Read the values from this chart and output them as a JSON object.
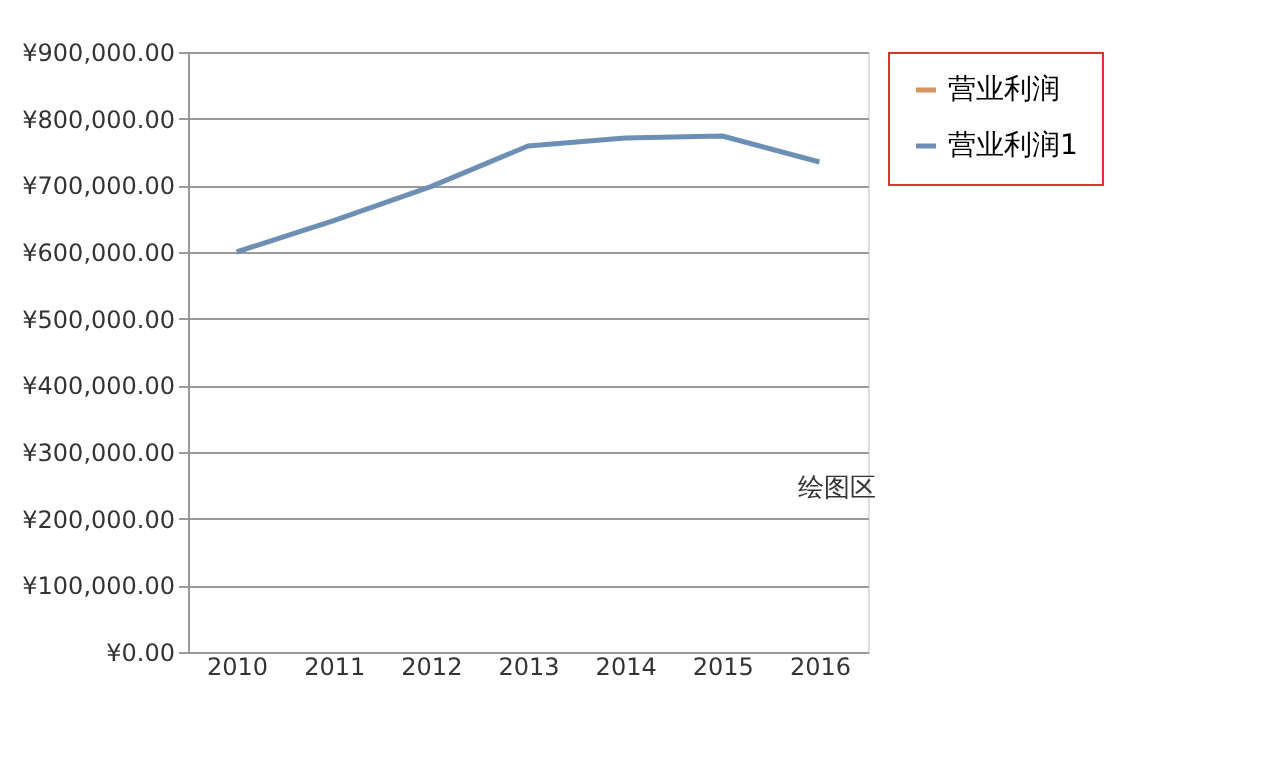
{
  "chart_data": {
    "type": "line",
    "categories": [
      "2010",
      "2011",
      "2012",
      "2013",
      "2014",
      "2015",
      "2016"
    ],
    "series": [
      {
        "name": "营业利润",
        "color": "#d9955b",
        "values": [
          null,
          null,
          null,
          null,
          null,
          null,
          null
        ]
      },
      {
        "name": "营业利润1",
        "color": "#6b8fb5",
        "values": [
          600000,
          647000,
          698000,
          759000,
          771000,
          774000,
          735000
        ]
      }
    ],
    "ylim": [
      0,
      900000
    ],
    "yticks": [
      {
        "value": 0,
        "label": "¥0.00"
      },
      {
        "value": 100000,
        "label": "¥100,000.00"
      },
      {
        "value": 200000,
        "label": "¥200,000.00"
      },
      {
        "value": 300000,
        "label": "¥300,000.00"
      },
      {
        "value": 400000,
        "label": "¥400,000.00"
      },
      {
        "value": 500000,
        "label": "¥500,000.00"
      },
      {
        "value": 600000,
        "label": "¥600,000.00"
      },
      {
        "value": 700000,
        "label": "¥700,000.00"
      },
      {
        "value": 800000,
        "label": "¥800,000.00"
      },
      {
        "value": 900000,
        "label": "¥900,000.00"
      }
    ],
    "grid": "y",
    "legend": "right",
    "line_style": "solid",
    "marker": "none",
    "annotations": [
      "绘图区"
    ]
  }
}
